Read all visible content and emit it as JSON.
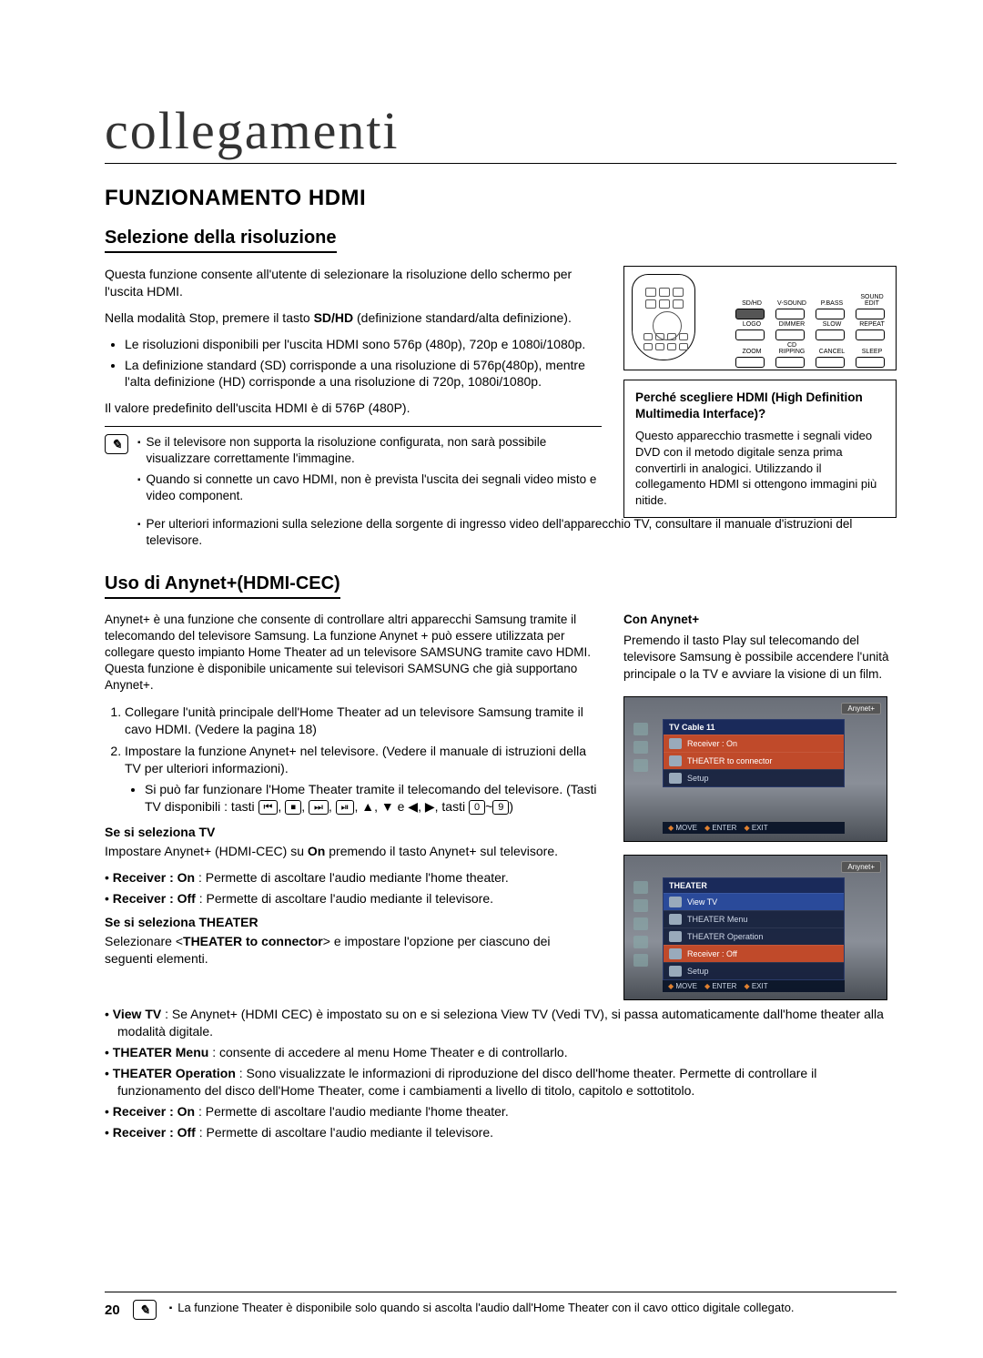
{
  "page": {
    "title": "collegamenti",
    "number": "20"
  },
  "section1": {
    "heading": "FUNZIONAMENTO HDMI",
    "sub1": {
      "heading": "Selezione della risoluzione",
      "p1": "Questa funzione consente all'utente di selezionare la risoluzione dello schermo per l'uscita HDMI.",
      "p2_pre": "Nella modalità Stop, premere il tasto ",
      "p2_bold": "SD/HD",
      "p2_post": " (definizione standard/alta definizione).",
      "b1": "Le risoluzioni disponibili per l'uscita HDMI sono 576p (480p), 720p e 1080i/1080p.",
      "b2": "La definizione standard (SD) corrisponde a una risoluzione di 576p(480p), mentre l'alta definizione (HD) corrisponde a una risoluzione di 720p, 1080i/1080p.",
      "p3": "Il valore predefinito dell'uscita HDMI è di 576P (480P).",
      "notes": {
        "n1": "Se il televisore non supporta la risoluzione configurata, non sarà possibile visualizzare correttamente l'immagine.",
        "n2": "Quando si connette un cavo HDMI, non è prevista l'uscita dei segnali video misto e video component.",
        "n3": "Per ulteriori informazioni sulla selezione della sorgente di ingresso video dell'apparecchio TV, consultare il manuale d'istruzioni del televisore."
      }
    },
    "remote": {
      "labels": [
        "SD/HD",
        "V-SOUND",
        "P.BASS",
        "SOUND EDIT",
        "LOGO",
        "DIMMER",
        "SLOW",
        "REPEAT",
        "ZOOM",
        "CD RIPPING",
        "CANCEL",
        "SLEEP"
      ],
      "highlight_index": 0
    },
    "infobox": {
      "title": "Perché scegliere HDMI (High Definition Multimedia Interface)?",
      "body": "Questo apparecchio trasmette i segnali video DVD con il metodo digitale senza prima convertirli in analogici. Utilizzando il collegamento HDMI si ottengono immagini più nitide."
    },
    "sub2": {
      "heading": "Uso di Anynet+(HDMI-CEC)",
      "p1": "Anynet+ è una funzione che consente di controllare altri apparecchi Samsung tramite il telecomando del televisore Samsung. La funzione Anynet + può essere utilizzata per collegare questo impianto Home Theater ad un televisore SAMSUNG tramite cavo HDMI. Questa funzione è disponibile unicamente sui televisori SAMSUNG che già supportano Anynet+.",
      "ol1": "Collegare l'unità principale dell'Home Theater ad un televisore Samsung tramite il cavo HDMI. (Vedere la pagina 18)",
      "ol2": "Impostare la funzione Anynet+ nel televisore. (Vedere il manuale di istruzioni della TV per ulteriori informazioni).",
      "ol2_sub_pre": "Si può far funzionare l'Home Theater tramite il telecomando del televisore. (Tasti TV disponibili : tasti ",
      "ol2_keys": [
        "⏮",
        "⏹",
        "⏭",
        "⏯"
      ],
      "ol2_sub_mid": ", ▲, ▼ e ◀, ▶, tasti ",
      "ol2_key_a": "0",
      "ol2_key_sep": "~",
      "ol2_key_b": "9",
      "ol2_sub_post": ")",
      "tv_h": "Se si seleziona TV",
      "tv_p_pre": "Impostare Anynet+ (HDMI-CEC) su ",
      "tv_p_bold": "On",
      "tv_p_post": " premendo il tasto Anynet+ sul televisore.",
      "tv_b1_pre": "Receiver : On",
      "tv_b1_post": " : Permette di ascoltare l'audio mediante l'home theater.",
      "tv_b2_pre": "Receiver : Off",
      "tv_b2_post": " : Permette di ascoltare l'audio mediante il televisore.",
      "th_h": "Se si seleziona THEATER",
      "th_p_pre": "Selezionare <",
      "th_p_bold": "THEATER to connector",
      "th_p_post": "> e impostare l'opzione per ciascuno dei seguenti elementi.",
      "th_b1_pre": "View TV",
      "th_b1_post": " : Se Anynet+ (HDMI CEC) è impostato su on e si seleziona View TV (Vedi TV), si passa automaticamente dall'home theater alla modalità digitale.",
      "th_b2_pre": "THEATER Menu",
      "th_b2_post": " : consente di accedere al menu Home Theater e di controllarlo.",
      "th_b3_pre": "THEATER Operation",
      "th_b3_post": " : Sono visualizzate le informazioni di riproduzione del disco dell'home theater. Permette di controllare il funzionamento del disco dell'Home Theater, come i cambiamenti a livello di titolo, capitolo e sottotitolo.",
      "th_b4_pre": "Receiver : On",
      "th_b4_post": " : Permette di ascoltare l'audio mediante l'home theater.",
      "th_b5_pre": "Receiver : Off",
      "th_b5_post": " : Permette di ascoltare l'audio mediante il televisore."
    },
    "side_anynet": {
      "title": "Con Anynet+",
      "body": "Premendo il tasto Play sul telecomando del televisore Samsung è possibile accendere l'unità principale o la TV e avviare la visione di un film."
    },
    "tvshot1": {
      "tab": "Anynet+",
      "header": "TV Cable 11",
      "rows": [
        {
          "label": "Receiver : On",
          "hl": "hl"
        },
        {
          "label": "THEATER to connector",
          "hl": "hl"
        },
        {
          "label": "Setup",
          "hl": ""
        }
      ],
      "foot": [
        "MOVE",
        "ENTER",
        "EXIT"
      ]
    },
    "tvshot2": {
      "tab": "Anynet+",
      "header": "THEATER",
      "rows": [
        {
          "label": "View TV",
          "hl": "hl2"
        },
        {
          "label": "THEATER Menu",
          "hl": ""
        },
        {
          "label": "THEATER Operation",
          "hl": ""
        },
        {
          "label": "Receiver : Off",
          "hl": "hl"
        },
        {
          "label": "Setup",
          "hl": ""
        }
      ],
      "foot": [
        "MOVE",
        "ENTER",
        "EXIT"
      ]
    },
    "footnote": "La funzione Theater è disponibile solo quando si ascolta l'audio dall'Home Theater con il cavo ottico digitale collegato."
  }
}
